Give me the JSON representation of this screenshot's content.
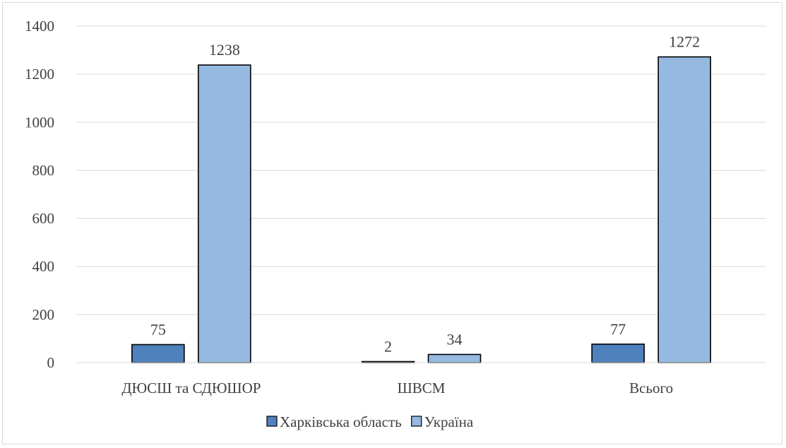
{
  "chart_data": {
    "type": "bar",
    "categories": [
      "ДЮСШ та СДЮШОР",
      "ШВСМ",
      "Всього"
    ],
    "series": [
      {
        "name": "Харківська область",
        "values": [
          75,
          2,
          77
        ],
        "color": "#4f81bd"
      },
      {
        "name": "Україна",
        "values": [
          1238,
          34,
          1272
        ],
        "color": "#95b9e0"
      }
    ],
    "y_ticks": [
      0,
      200,
      400,
      600,
      800,
      1000,
      1200,
      1400
    ],
    "ylim": [
      0,
      1400
    ],
    "grid": true,
    "legend_position": "bottom",
    "title": "",
    "xlabel": "",
    "ylabel": ""
  }
}
